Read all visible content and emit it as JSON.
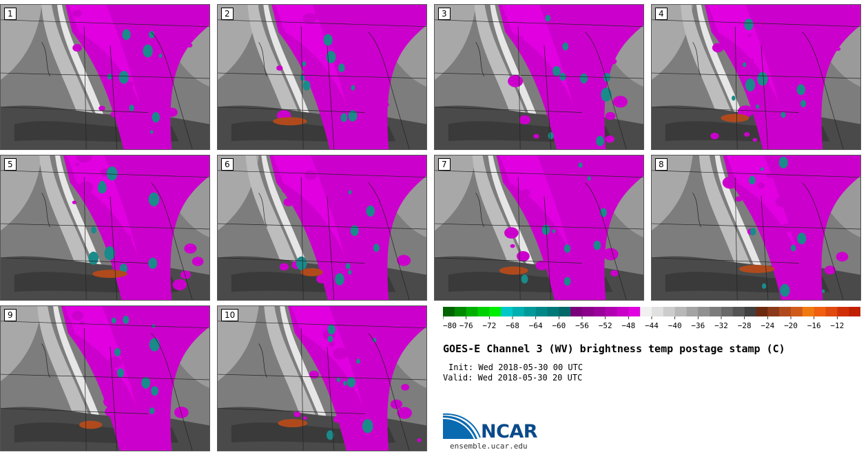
{
  "panels": [
    {
      "label": "1"
    },
    {
      "label": "2"
    },
    {
      "label": "3"
    },
    {
      "label": "4"
    },
    {
      "label": "5"
    },
    {
      "label": "6"
    },
    {
      "label": "7"
    },
    {
      "label": "8"
    },
    {
      "label": "9"
    },
    {
      "label": "10"
    }
  ],
  "colorbar": {
    "colors": [
      "#006400",
      "#008a00",
      "#00b000",
      "#00d000",
      "#00ee00",
      "#00c8c8",
      "#00b0b0",
      "#009a9a",
      "#008888",
      "#007878",
      "#006868",
      "#7a007a",
      "#8a008a",
      "#9a009a",
      "#b000b0",
      "#c800c8",
      "#e000e0",
      "#f0f0f0",
      "#e0e0e0",
      "#cccccc",
      "#b8b8b8",
      "#a4a4a4",
      "#909090",
      "#7c7c7c",
      "#686868",
      "#545454",
      "#404040",
      "#6b2a10",
      "#8a3a18",
      "#b04a1c",
      "#d05a1a",
      "#f07a10",
      "#f06010",
      "#e04a10",
      "#d03008",
      "#c02000"
    ],
    "tick_labels": [
      "−80",
      "−76",
      "−72",
      "−68",
      "−64",
      "−60",
      "−56",
      "−52",
      "−48",
      "−44",
      "−40",
      "−36",
      "−32",
      "−28",
      "−24",
      "−20",
      "−16",
      "−12"
    ]
  },
  "info": {
    "title": "GOES-E Channel 3 (WV) brightness temp postage stamp (C)",
    "init": "Init: Wed 2018-05-30 00 UTC",
    "valid": "Valid: Wed 2018-05-30 20 UTC"
  },
  "logo": {
    "text": "NCAR",
    "url": "ensemble.ucar.edu",
    "color": "#0a6ab0"
  }
}
